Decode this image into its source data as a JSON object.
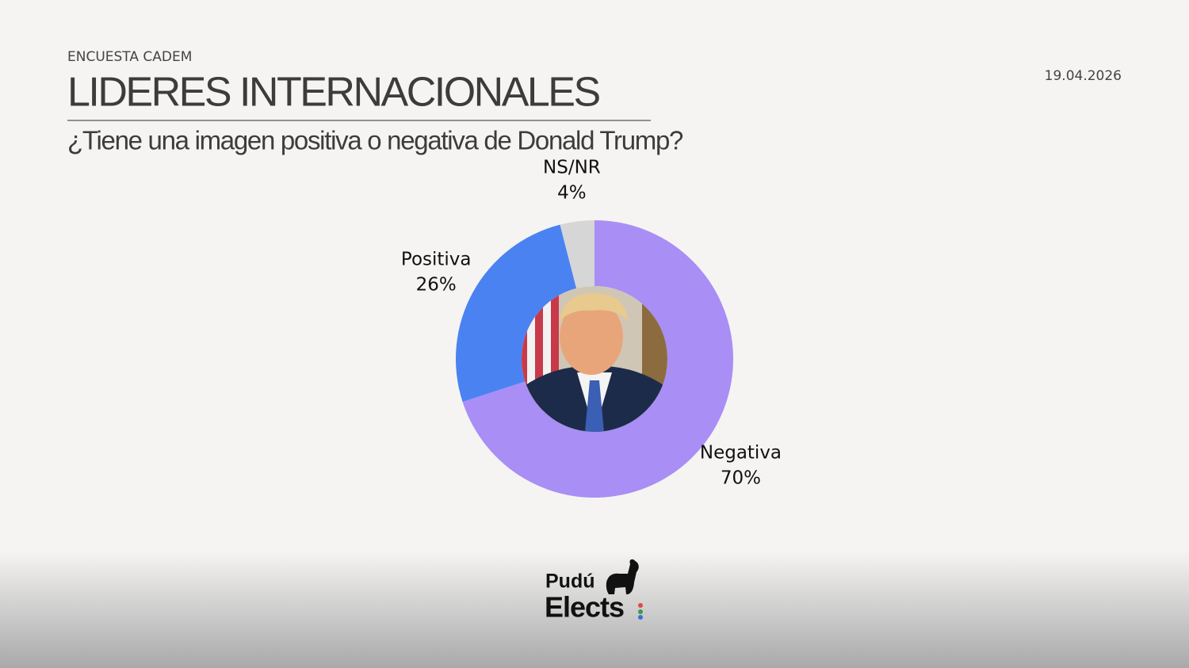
{
  "chart_data": {
    "type": "pie",
    "donut": true,
    "source": "ENCUESTA CADEM",
    "title": "LIDERES INTERNACIONALES",
    "subtitle": "¿Tiene una imagen positiva o negativa de Donald Trump?",
    "date": "19.04.2026",
    "categories": [
      "Negativa",
      "Positiva",
      "NS/NR"
    ],
    "values": [
      70,
      26,
      4
    ],
    "value_labels": [
      "70%",
      "26%",
      "4%"
    ],
    "colors": [
      "#a98ef5",
      "#4a82f2",
      "#d6d6d6"
    ]
  },
  "logo": {
    "line1": "Pudú",
    "line2": "Elects"
  }
}
